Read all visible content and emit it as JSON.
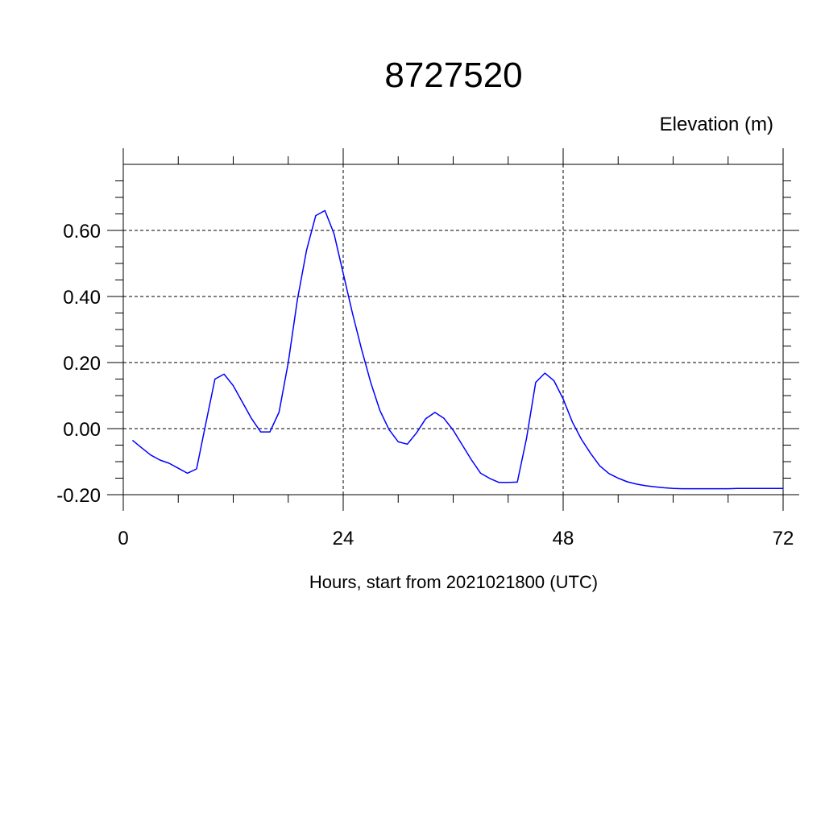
{
  "chart_data": {
    "type": "line",
    "title": "8727520",
    "ylabel": "Elevation (m)",
    "xlabel": "Hours, start from 2021021800 (UTC)",
    "xlim": [
      0,
      72
    ],
    "ylim": [
      -0.2,
      0.8
    ],
    "x_ticks": [
      0,
      24,
      48,
      72
    ],
    "x_tick_labels": [
      "0",
      "24",
      "48",
      "72"
    ],
    "y_ticks": [
      -0.2,
      0.0,
      0.2,
      0.4,
      0.6
    ],
    "y_tick_labels": [
      "-0.20",
      "0.00",
      "0.20",
      "0.40",
      "0.60"
    ],
    "grid": true,
    "series": [
      {
        "color": "#0000ff",
        "x": [
          1,
          2,
          3,
          4,
          5,
          6,
          7,
          8,
          9,
          10,
          11,
          12,
          13,
          14,
          15,
          16,
          17,
          18,
          19,
          20,
          21,
          22,
          23,
          24,
          25,
          26,
          27,
          28,
          29,
          30,
          31,
          32,
          33,
          34,
          35,
          36,
          37,
          38,
          39,
          40,
          41,
          42,
          43,
          44,
          45,
          46,
          47,
          48,
          49,
          50,
          51,
          52,
          53,
          54,
          55,
          56,
          57,
          58,
          59,
          60,
          61,
          62,
          63,
          64,
          65,
          66,
          67,
          68,
          69,
          70,
          71,
          72
        ],
        "y": [
          -0.035,
          -0.058,
          -0.08,
          -0.095,
          -0.105,
          -0.12,
          -0.135,
          -0.122,
          0.015,
          0.15,
          0.165,
          0.13,
          0.08,
          0.03,
          -0.01,
          -0.01,
          0.05,
          0.2,
          0.39,
          0.54,
          0.645,
          0.66,
          0.59,
          0.47,
          0.35,
          0.24,
          0.14,
          0.055,
          -0.003,
          -0.04,
          -0.047,
          -0.013,
          0.03,
          0.049,
          0.031,
          -0.005,
          -0.05,
          -0.095,
          -0.135,
          -0.151,
          -0.163,
          -0.163,
          -0.162,
          -0.03,
          0.14,
          0.168,
          0.145,
          0.09,
          0.02,
          -0.033,
          -0.075,
          -0.113,
          -0.136,
          -0.15,
          -0.161,
          -0.168,
          -0.173,
          -0.176,
          -0.179,
          -0.181,
          -0.182,
          -0.182,
          -0.182,
          -0.182,
          -0.182,
          -0.182,
          -0.181,
          -0.181,
          -0.181,
          -0.181,
          -0.181,
          -0.181
        ]
      }
    ]
  }
}
